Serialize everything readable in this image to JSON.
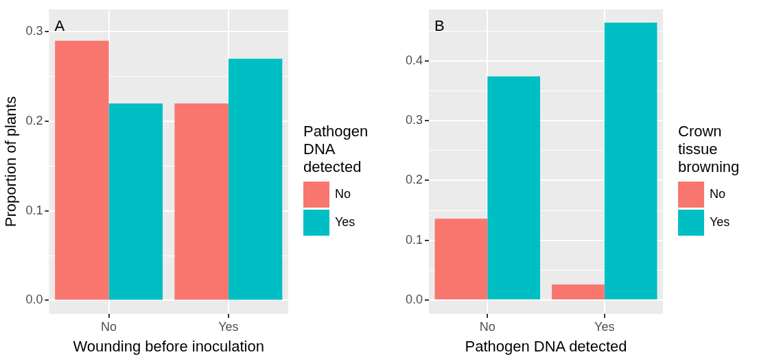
{
  "chart_data": [
    {
      "type": "bar",
      "categories": [
        "No",
        "Yes"
      ],
      "xlabel": "Wounding before inoculation",
      "ylabel": "Proportion of plants",
      "legend_title": "Pathogen DNA detected",
      "legend": "right",
      "grid": true,
      "annotations": [
        "A"
      ],
      "series": [
        {
          "name": "No",
          "color": "#f8766d",
          "values": [
            0.29,
            0.22
          ]
        },
        {
          "name": "Yes",
          "color": "#00bfc4",
          "values": [
            0.22,
            0.27
          ]
        }
      ],
      "ylim": [
        -0.015,
        0.325
      ],
      "yticks": [
        {
          "value": 0,
          "label": "0.0"
        },
        {
          "value": 0.05,
          "label": null
        },
        0.1,
        {
          "value": 0.15,
          "label": null
        },
        0.2,
        {
          "value": 0.25,
          "label": null
        },
        0.3
      ]
    },
    {
      "type": "bar",
      "categories": [
        "No",
        "Yes"
      ],
      "xlabel": "Pathogen DNA detected",
      "legend_title": "Crown tissue browning",
      "legend": "right",
      "grid": true,
      "annotations": [
        "B"
      ],
      "series": [
        {
          "name": "No",
          "color": "#f8766d",
          "values": [
            0.136,
            0.026
          ]
        },
        {
          "name": "Yes",
          "color": "#00bfc4",
          "values": [
            0.374,
            0.464
          ]
        }
      ],
      "ylim": [
        -0.023,
        0.486
      ],
      "yticks": [
        {
          "value": 0,
          "label": "0.0"
        },
        {
          "value": 0.05,
          "label": null
        },
        0.1,
        {
          "value": 0.15,
          "label": null
        },
        0.2,
        {
          "value": 0.25,
          "label": null
        },
        0.3,
        {
          "value": 0.35,
          "label": null
        },
        0.4,
        {
          "value": 0.45,
          "label": null
        }
      ]
    }
  ]
}
